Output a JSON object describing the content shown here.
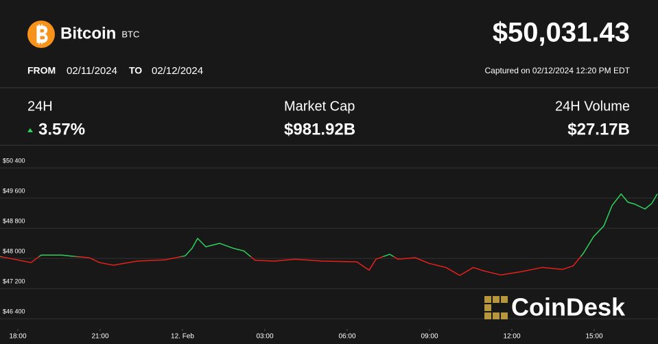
{
  "header": {
    "name": "Bitcoin",
    "symbol": "BTC",
    "price": "$50,031.43",
    "from_label": "FROM",
    "from": "02/11/2024",
    "to_label": "TO",
    "to": "02/12/2024",
    "captured": "Captured on 02/12/2024 12:20 PM EDT"
  },
  "stats": [
    {
      "label": "24H",
      "value": "3.57%",
      "color": "#2ed15c"
    },
    {
      "label": "Market Cap",
      "value": "$981.92B"
    },
    {
      "label": "24H Volume",
      "value": "$27.17B"
    }
  ],
  "watermark": "CoinDesk",
  "chart_data": {
    "type": "line",
    "x": [
      -0.65,
      -0.15,
      0.48,
      0.85,
      1.6,
      2.1,
      2.6,
      2.98,
      3.48,
      4.35,
      5.35,
      6.1,
      6.35,
      6.55,
      6.85,
      7.35,
      7.85,
      8.23,
      8.65,
      9.35,
      10.1,
      11.1,
      12.35,
      12.8,
      13.05,
      13.55,
      13.85,
      14.48,
      14.98,
      15.6,
      16.1,
      16.6,
      16.98,
      17.6,
      18.35,
      19.1,
      19.85,
      20.23,
      20.6,
      20.98,
      21.35,
      21.65,
      21.98,
      22.23,
      22.48,
      22.85,
      23.1,
      23.3
    ],
    "values": [
      48050,
      47980,
      47890,
      48090,
      48090,
      48050,
      48020,
      47890,
      47820,
      47930,
      47960,
      48070,
      48270,
      48530,
      48310,
      48400,
      48270,
      48200,
      47950,
      47930,
      47980,
      47930,
      47910,
      47690,
      47980,
      48110,
      47980,
      48020,
      47870,
      47760,
      47550,
      47760,
      47670,
      47560,
      47650,
      47760,
      47710,
      47800,
      48130,
      48580,
      48860,
      49400,
      49710,
      49490,
      49440,
      49310,
      49460,
      49710
    ],
    "color_up": "#2ed15c",
    "color_down": "#e8201a",
    "xlim": [
      -0.65,
      23.325
    ],
    "xticks": [
      {
        "value": 0,
        "label": "18:00"
      },
      {
        "value": 3,
        "label": "21:00"
      },
      {
        "value": 6,
        "label": "12. Feb"
      },
      {
        "value": 9,
        "label": "03:00"
      },
      {
        "value": 12,
        "label": "06:00"
      },
      {
        "value": 15,
        "label": "09:00"
      },
      {
        "value": 18,
        "label": "12:00"
      },
      {
        "value": 21,
        "label": "15:00"
      }
    ],
    "ylim": [
      46130,
      50710
    ],
    "yticks": [
      {
        "value": 50400,
        "label": "$50 400"
      },
      {
        "value": 49600,
        "label": "$49 600"
      },
      {
        "value": 48800,
        "label": "$48 800"
      },
      {
        "value": 48000,
        "label": "$48 000"
      },
      {
        "value": 47200,
        "label": "$47 200"
      },
      {
        "value": 46400,
        "label": "$46 400"
      }
    ],
    "grid": true
  }
}
